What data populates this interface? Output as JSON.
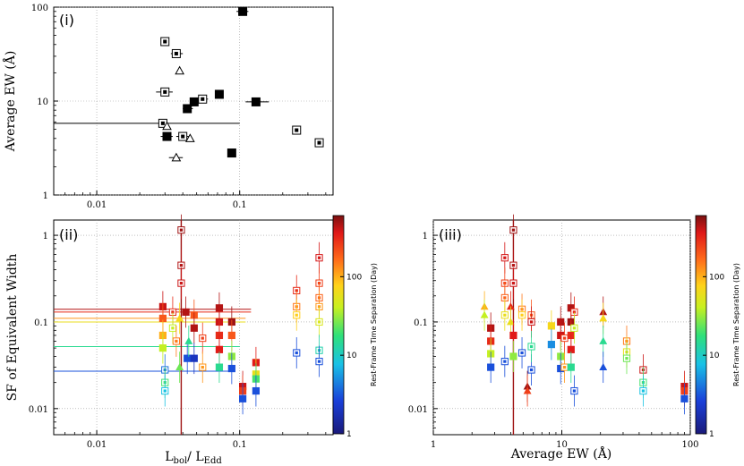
{
  "chart_data": [
    {
      "type": "scatter",
      "panel_label": "(i)",
      "xlabel": "",
      "ylabel": "Average EW (Å)",
      "xscale": "log",
      "yscale": "log",
      "xlim": [
        0.005,
        0.45
      ],
      "ylim": [
        1,
        100
      ],
      "xticks": [
        {
          "v": 0.01,
          "t": "0.01"
        },
        {
          "v": 0.1,
          "t": "0.1"
        }
      ],
      "yticks": [
        {
          "v": 1,
          "t": "1"
        },
        {
          "v": 10,
          "t": "10"
        },
        {
          "v": 100,
          "t": "100"
        }
      ],
      "grid": true,
      "points": [
        {
          "x": 0.105,
          "y": 90,
          "m": "filled-square",
          "xerr": [
            0.095,
            0.115
          ]
        },
        {
          "x": 0.03,
          "y": 43,
          "m": "open-square"
        },
        {
          "x": 0.036,
          "y": 32,
          "m": "open-square",
          "xerr": [
            0.033,
            0.04
          ]
        },
        {
          "x": 0.038,
          "y": 21,
          "m": "triangle"
        },
        {
          "x": 0.03,
          "y": 12.5,
          "m": "open-square",
          "xerr": [
            0.026,
            0.034
          ]
        },
        {
          "x": 0.072,
          "y": 11.8,
          "m": "filled-square"
        },
        {
          "x": 0.055,
          "y": 10.5,
          "m": "open-square",
          "xerr": [
            0.05,
            0.06
          ]
        },
        {
          "x": 0.048,
          "y": 9.8,
          "m": "filled-square"
        },
        {
          "x": 0.13,
          "y": 9.8,
          "m": "filled-square",
          "xerr": [
            0.11,
            0.16
          ]
        },
        {
          "x": 0.043,
          "y": 8.3,
          "m": "filled-square",
          "xerr": [
            0.04,
            0.047
          ]
        },
        {
          "x": 0.029,
          "y": 5.8,
          "m": "open-square",
          "xerr": [
            0.005,
            0.1
          ]
        },
        {
          "x": 0.031,
          "y": 5.4,
          "m": "triangle"
        },
        {
          "x": 0.25,
          "y": 4.9,
          "m": "open-square"
        },
        {
          "x": 0.031,
          "y": 4.2,
          "m": "filled-square",
          "xerr": [
            0.028,
            0.034
          ]
        },
        {
          "x": 0.04,
          "y": 4.2,
          "m": "open-square",
          "xerr": [
            0.036,
            0.044
          ]
        },
        {
          "x": 0.045,
          "y": 4.0,
          "m": "triangle"
        },
        {
          "x": 0.36,
          "y": 3.6,
          "m": "open-square"
        },
        {
          "x": 0.088,
          "y": 2.8,
          "m": "filled-square"
        },
        {
          "x": 0.036,
          "y": 2.5,
          "m": "triangle",
          "xerr": [
            0.032,
            0.04
          ]
        }
      ]
    },
    {
      "type": "scatter",
      "panel_label": "(ii)",
      "xlabel": "Lbol/ LEdd",
      "ylabel": "SF of Equivalent Width",
      "xscale": "log",
      "yscale": "log",
      "xlim": [
        0.005,
        0.45
      ],
      "ylim": [
        0.005,
        1.5
      ],
      "xticks": [
        {
          "v": 0.01,
          "t": "0.01"
        },
        {
          "v": 0.1,
          "t": "0.1"
        }
      ],
      "yticks": [
        {
          "v": 0.01,
          "t": "0.01"
        },
        {
          "v": 0.1,
          "t": "0.1"
        },
        {
          "v": 1,
          "t": "1"
        }
      ],
      "grid": true,
      "colorbar": {
        "label": "Rest-Frame Time Separation (Day)",
        "range": [
          1,
          600
        ],
        "ticks": [
          {
            "v": 1,
            "t": "1"
          },
          {
            "v": 10,
            "t": "10"
          },
          {
            "v": 100,
            "t": "100"
          }
        ]
      },
      "hlines": [
        {
          "y": 0.14,
          "x0": 0.005,
          "x1": 0.12,
          "c": 450
        },
        {
          "y": 0.13,
          "x0": 0.005,
          "x1": 0.12,
          "c": 300
        },
        {
          "y": 0.11,
          "x0": 0.005,
          "x1": 0.11,
          "c": 120
        },
        {
          "y": 0.1,
          "x0": 0.005,
          "x1": 0.11,
          "c": 60
        },
        {
          "y": 0.052,
          "x0": 0.005,
          "x1": 0.1,
          "c": 15
        },
        {
          "y": 0.027,
          "x0": 0.005,
          "x1": 0.09,
          "c": 3
        }
      ],
      "vlines": [
        {
          "x": 0.039,
          "y0": 0.005,
          "y1": 1.5,
          "c": 500
        }
      ],
      "points": [
        {
          "x": 0.039,
          "y": 1.15,
          "m": "open-square",
          "c": 500
        },
        {
          "x": 0.039,
          "y": 0.45,
          "m": "open-square",
          "c": 450
        },
        {
          "x": 0.039,
          "y": 0.28,
          "m": "open-square",
          "c": 400
        },
        {
          "x": 0.36,
          "y": 0.55,
          "m": "open-square",
          "c": 380
        },
        {
          "x": 0.36,
          "y": 0.28,
          "m": "open-square",
          "c": 250
        },
        {
          "x": 0.36,
          "y": 0.19,
          "m": "open-square",
          "c": 180
        },
        {
          "x": 0.36,
          "y": 0.15,
          "m": "open-square",
          "c": 120
        },
        {
          "x": 0.36,
          "y": 0.1,
          "m": "open-square",
          "c": 50
        },
        {
          "x": 0.36,
          "y": 0.047,
          "m": "open-square",
          "c": 12
        },
        {
          "x": 0.36,
          "y": 0.035,
          "m": "open-square",
          "c": 3
        },
        {
          "x": 0.25,
          "y": 0.23,
          "m": "open-square",
          "c": 300
        },
        {
          "x": 0.25,
          "y": 0.15,
          "m": "open-square",
          "c": 150
        },
        {
          "x": 0.25,
          "y": 0.12,
          "m": "open-square",
          "c": 80
        },
        {
          "x": 0.25,
          "y": 0.044,
          "m": "open-square",
          "c": 3
        },
        {
          "x": 0.029,
          "y": 0.15,
          "m": "filled-square",
          "c": 400
        },
        {
          "x": 0.029,
          "y": 0.11,
          "m": "filled-square",
          "c": 200
        },
        {
          "x": 0.029,
          "y": 0.07,
          "m": "filled-square",
          "c": 100
        },
        {
          "x": 0.029,
          "y": 0.05,
          "m": "filled-square",
          "c": 40
        },
        {
          "x": 0.03,
          "y": 0.028,
          "m": "open-square",
          "c": 4
        },
        {
          "x": 0.03,
          "y": 0.02,
          "m": "open-square",
          "c": 20
        },
        {
          "x": 0.03,
          "y": 0.016,
          "m": "open-square",
          "c": 8
        },
        {
          "x": 0.034,
          "y": 0.13,
          "m": "open-square",
          "c": 300
        },
        {
          "x": 0.034,
          "y": 0.085,
          "m": "open-square",
          "c": 40
        },
        {
          "x": 0.036,
          "y": 0.06,
          "m": "open-square",
          "c": 150
        },
        {
          "x": 0.038,
          "y": 0.11,
          "m": "triangle",
          "c": 70
        },
        {
          "x": 0.038,
          "y": 0.03,
          "m": "triangle",
          "c": 25
        },
        {
          "x": 0.042,
          "y": 0.13,
          "m": "filled-square",
          "c": 450
        },
        {
          "x": 0.043,
          "y": 0.038,
          "m": "filled-square",
          "c": 3
        },
        {
          "x": 0.044,
          "y": 0.06,
          "m": "triangle",
          "c": 15
        },
        {
          "x": 0.048,
          "y": 0.12,
          "m": "filled-square",
          "c": 200
        },
        {
          "x": 0.048,
          "y": 0.085,
          "m": "filled-square",
          "c": 450
        },
        {
          "x": 0.048,
          "y": 0.038,
          "m": "filled-square",
          "c": 2
        },
        {
          "x": 0.055,
          "y": 0.065,
          "m": "open-square",
          "c": 250
        },
        {
          "x": 0.055,
          "y": 0.03,
          "m": "open-square",
          "c": 120
        },
        {
          "x": 0.072,
          "y": 0.145,
          "m": "filled-square",
          "c": 450
        },
        {
          "x": 0.072,
          "y": 0.1,
          "m": "filled-square",
          "c": 400
        },
        {
          "x": 0.072,
          "y": 0.07,
          "m": "filled-square",
          "c": 300
        },
        {
          "x": 0.072,
          "y": 0.048,
          "m": "filled-square",
          "c": 350
        },
        {
          "x": 0.072,
          "y": 0.03,
          "m": "filled-square",
          "c": 15
        },
        {
          "x": 0.088,
          "y": 0.1,
          "m": "filled-square",
          "c": 500
        },
        {
          "x": 0.088,
          "y": 0.07,
          "m": "filled-square",
          "c": 200
        },
        {
          "x": 0.088,
          "y": 0.04,
          "m": "filled-square",
          "c": 30
        },
        {
          "x": 0.088,
          "y": 0.029,
          "m": "filled-square",
          "c": 3
        },
        {
          "x": 0.105,
          "y": 0.018,
          "m": "filled-square",
          "c": 400
        },
        {
          "x": 0.105,
          "y": 0.016,
          "m": "filled-square",
          "c": 250
        },
        {
          "x": 0.105,
          "y": 0.013,
          "m": "filled-square",
          "c": 3
        },
        {
          "x": 0.13,
          "y": 0.034,
          "m": "filled-square",
          "c": 350
        },
        {
          "x": 0.13,
          "y": 0.025,
          "m": "filled-square",
          "c": 60
        },
        {
          "x": 0.13,
          "y": 0.022,
          "m": "filled-square",
          "c": 20
        },
        {
          "x": 0.13,
          "y": 0.016,
          "m": "filled-square",
          "c": 3
        }
      ]
    },
    {
      "type": "scatter",
      "panel_label": "(iii)",
      "xlabel": "Average EW (Å)",
      "ylabel": "",
      "xscale": "log",
      "yscale": "log",
      "xlim": [
        1,
        100
      ],
      "ylim": [
        0.005,
        1.5
      ],
      "xticks": [
        {
          "v": 1,
          "t": "1"
        },
        {
          "v": 10,
          "t": "10"
        },
        {
          "v": 100,
          "t": "100"
        }
      ],
      "yticks": [
        {
          "v": 0.01,
          "t": "0.01"
        },
        {
          "v": 0.1,
          "t": "0.1"
        },
        {
          "v": 1,
          "t": "1"
        }
      ],
      "grid": true,
      "colorbar": {
        "label": "Rest-Frame Time Separation (Day)",
        "range": [
          1,
          600
        ],
        "ticks": [
          {
            "v": 1,
            "t": "1"
          },
          {
            "v": 10,
            "t": "10"
          },
          {
            "v": 100,
            "t": "100"
          }
        ]
      },
      "vlines": [
        {
          "x": 4.2,
          "y0": 0.005,
          "y1": 1.5,
          "c": 500
        }
      ],
      "points": [
        {
          "x": 4.2,
          "y": 1.15,
          "m": "open-square",
          "c": 500
        },
        {
          "x": 4.2,
          "y": 0.45,
          "m": "open-square",
          "c": 450
        },
        {
          "x": 4.2,
          "y": 0.28,
          "m": "open-square",
          "c": 400
        },
        {
          "x": 3.6,
          "y": 0.55,
          "m": "open-square",
          "c": 380
        },
        {
          "x": 3.6,
          "y": 0.28,
          "m": "open-square",
          "c": 250
        },
        {
          "x": 3.6,
          "y": 0.19,
          "m": "open-square",
          "c": 180
        },
        {
          "x": 3.6,
          "y": 0.12,
          "m": "open-square",
          "c": 60
        },
        {
          "x": 3.6,
          "y": 0.035,
          "m": "open-square",
          "c": 3
        },
        {
          "x": 2.5,
          "y": 0.15,
          "m": "triangle",
          "c": 100
        },
        {
          "x": 2.5,
          "y": 0.12,
          "m": "triangle",
          "c": 40
        },
        {
          "x": 2.8,
          "y": 0.085,
          "m": "filled-square",
          "c": 450
        },
        {
          "x": 2.8,
          "y": 0.06,
          "m": "filled-square",
          "c": 300
        },
        {
          "x": 2.8,
          "y": 0.043,
          "m": "filled-square",
          "c": 40
        },
        {
          "x": 2.8,
          "y": 0.03,
          "m": "filled-square",
          "c": 3
        },
        {
          "x": 4.0,
          "y": 0.15,
          "m": "triangle",
          "c": 300
        },
        {
          "x": 4.0,
          "y": 0.1,
          "m": "triangle",
          "c": 60
        },
        {
          "x": 4.2,
          "y": 0.07,
          "m": "filled-square",
          "c": 350
        },
        {
          "x": 4.2,
          "y": 0.04,
          "m": "filled-square",
          "c": 30
        },
        {
          "x": 4.9,
          "y": 0.14,
          "m": "open-square",
          "c": 150
        },
        {
          "x": 4.9,
          "y": 0.12,
          "m": "open-square",
          "c": 80
        },
        {
          "x": 4.9,
          "y": 0.044,
          "m": "open-square",
          "c": 3
        },
        {
          "x": 5.4,
          "y": 0.018,
          "m": "triangle",
          "c": 500
        },
        {
          "x": 5.4,
          "y": 0.016,
          "m": "triangle",
          "c": 250
        },
        {
          "x": 5.8,
          "y": 0.12,
          "m": "open-square",
          "c": 200
        },
        {
          "x": 5.8,
          "y": 0.1,
          "m": "open-square",
          "c": 400
        },
        {
          "x": 5.8,
          "y": 0.028,
          "m": "open-square",
          "c": 3
        },
        {
          "x": 5.8,
          "y": 0.052,
          "m": "open-square",
          "c": 15
        },
        {
          "x": 8.3,
          "y": 0.09,
          "m": "filled-square",
          "c": 70
        },
        {
          "x": 8.3,
          "y": 0.055,
          "m": "filled-square",
          "c": 5
        },
        {
          "x": 9.8,
          "y": 0.1,
          "m": "filled-square",
          "c": 450
        },
        {
          "x": 9.8,
          "y": 0.07,
          "m": "filled-square",
          "c": 400
        },
        {
          "x": 9.8,
          "y": 0.04,
          "m": "filled-square",
          "c": 30
        },
        {
          "x": 9.8,
          "y": 0.029,
          "m": "filled-square",
          "c": 3
        },
        {
          "x": 10.5,
          "y": 0.065,
          "m": "open-square",
          "c": 250
        },
        {
          "x": 10.5,
          "y": 0.03,
          "m": "open-square",
          "c": 120
        },
        {
          "x": 11.8,
          "y": 0.145,
          "m": "filled-square",
          "c": 450
        },
        {
          "x": 11.8,
          "y": 0.1,
          "m": "filled-square",
          "c": 500
        },
        {
          "x": 11.8,
          "y": 0.07,
          "m": "filled-square",
          "c": 300
        },
        {
          "x": 11.8,
          "y": 0.048,
          "m": "filled-square",
          "c": 350
        },
        {
          "x": 11.8,
          "y": 0.03,
          "m": "filled-square",
          "c": 15
        },
        {
          "x": 12.5,
          "y": 0.13,
          "m": "open-square",
          "c": 300
        },
        {
          "x": 12.5,
          "y": 0.085,
          "m": "open-square",
          "c": 40
        },
        {
          "x": 12.5,
          "y": 0.016,
          "m": "open-square",
          "c": 3
        },
        {
          "x": 21,
          "y": 0.13,
          "m": "triangle",
          "c": 450
        },
        {
          "x": 21,
          "y": 0.11,
          "m": "triangle",
          "c": 70
        },
        {
          "x": 21,
          "y": 0.06,
          "m": "triangle",
          "c": 15
        },
        {
          "x": 21,
          "y": 0.03,
          "m": "triangle",
          "c": 3
        },
        {
          "x": 32,
          "y": 0.06,
          "m": "open-square",
          "c": 150
        },
        {
          "x": 32,
          "y": 0.045,
          "m": "open-square",
          "c": 60
        },
        {
          "x": 32,
          "y": 0.038,
          "m": "open-square",
          "c": 25
        },
        {
          "x": 43,
          "y": 0.028,
          "m": "open-square",
          "c": 400
        },
        {
          "x": 43,
          "y": 0.02,
          "m": "open-square",
          "c": 20
        },
        {
          "x": 43,
          "y": 0.016,
          "m": "open-square",
          "c": 8
        },
        {
          "x": 90,
          "y": 0.018,
          "m": "filled-square",
          "c": 400
        },
        {
          "x": 90,
          "y": 0.016,
          "m": "filled-square",
          "c": 250
        },
        {
          "x": 90,
          "y": 0.013,
          "m": "filled-square",
          "c": 3
        }
      ]
    }
  ],
  "figure": {
    "sub_bol": "bol",
    "sub_edd": "Edd",
    "L": "L",
    "slash": "/ "
  }
}
